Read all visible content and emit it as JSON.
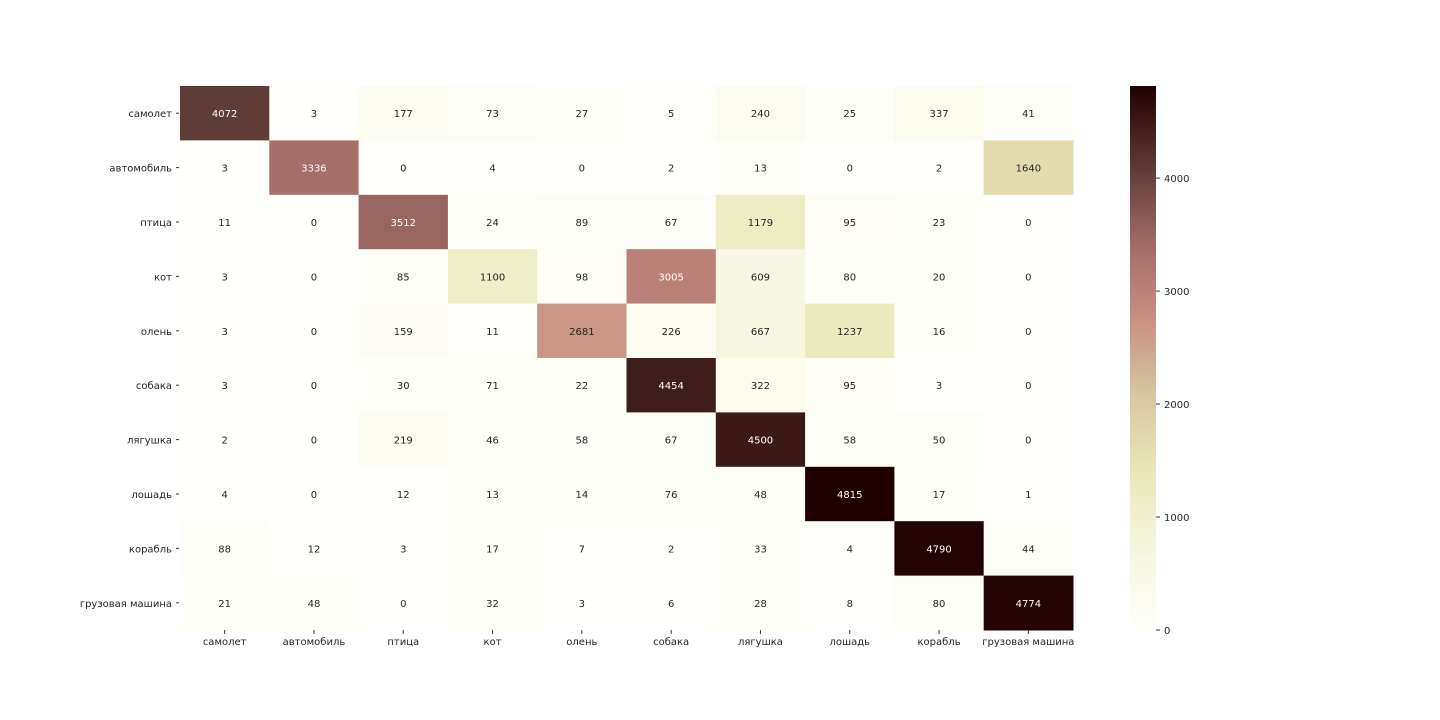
{
  "chart_data": {
    "type": "heatmap",
    "title": "",
    "xlabel": "",
    "ylabel": "",
    "x_categories": [
      "самолет",
      "автомобиль",
      "птица",
      "кот",
      "олень",
      "собака",
      "лягушка",
      "лошадь",
      "корабль",
      "грузовая машина"
    ],
    "y_categories": [
      "самолет",
      "автомобиль",
      "птица",
      "кот",
      "олень",
      "собака",
      "лягушка",
      "лошадь",
      "корабль",
      "грузовая машина"
    ],
    "values": [
      [
        4072,
        3,
        177,
        73,
        27,
        5,
        240,
        25,
        337,
        41
      ],
      [
        3,
        3336,
        0,
        4,
        0,
        2,
        13,
        0,
        2,
        1640
      ],
      [
        11,
        0,
        3512,
        24,
        89,
        67,
        1179,
        95,
        23,
        0
      ],
      [
        3,
        0,
        85,
        1100,
        98,
        3005,
        609,
        80,
        20,
        0
      ],
      [
        3,
        0,
        159,
        11,
        2681,
        226,
        667,
        1237,
        16,
        0
      ],
      [
        3,
        0,
        30,
        71,
        22,
        4454,
        322,
        95,
        3,
        0
      ],
      [
        2,
        0,
        219,
        46,
        58,
        67,
        4500,
        58,
        50,
        0
      ],
      [
        4,
        0,
        12,
        13,
        14,
        76,
        48,
        4815,
        17,
        1
      ],
      [
        88,
        12,
        3,
        17,
        7,
        2,
        33,
        4,
        4790,
        44
      ],
      [
        21,
        48,
        0,
        32,
        3,
        6,
        28,
        8,
        80,
        4774
      ]
    ],
    "color_scale": {
      "vmin": 0,
      "vmax": 4815,
      "ticks": [
        0,
        1000,
        2000,
        3000,
        4000
      ],
      "stops": [
        "#fffffb",
        "#f6f6e0",
        "#e9e8b8",
        "#d7c8a0",
        "#c98f82",
        "#a06a64",
        "#5a3835",
        "#200000"
      ]
    },
    "annotations": true,
    "grid": false,
    "legend": "colorbar-right"
  }
}
